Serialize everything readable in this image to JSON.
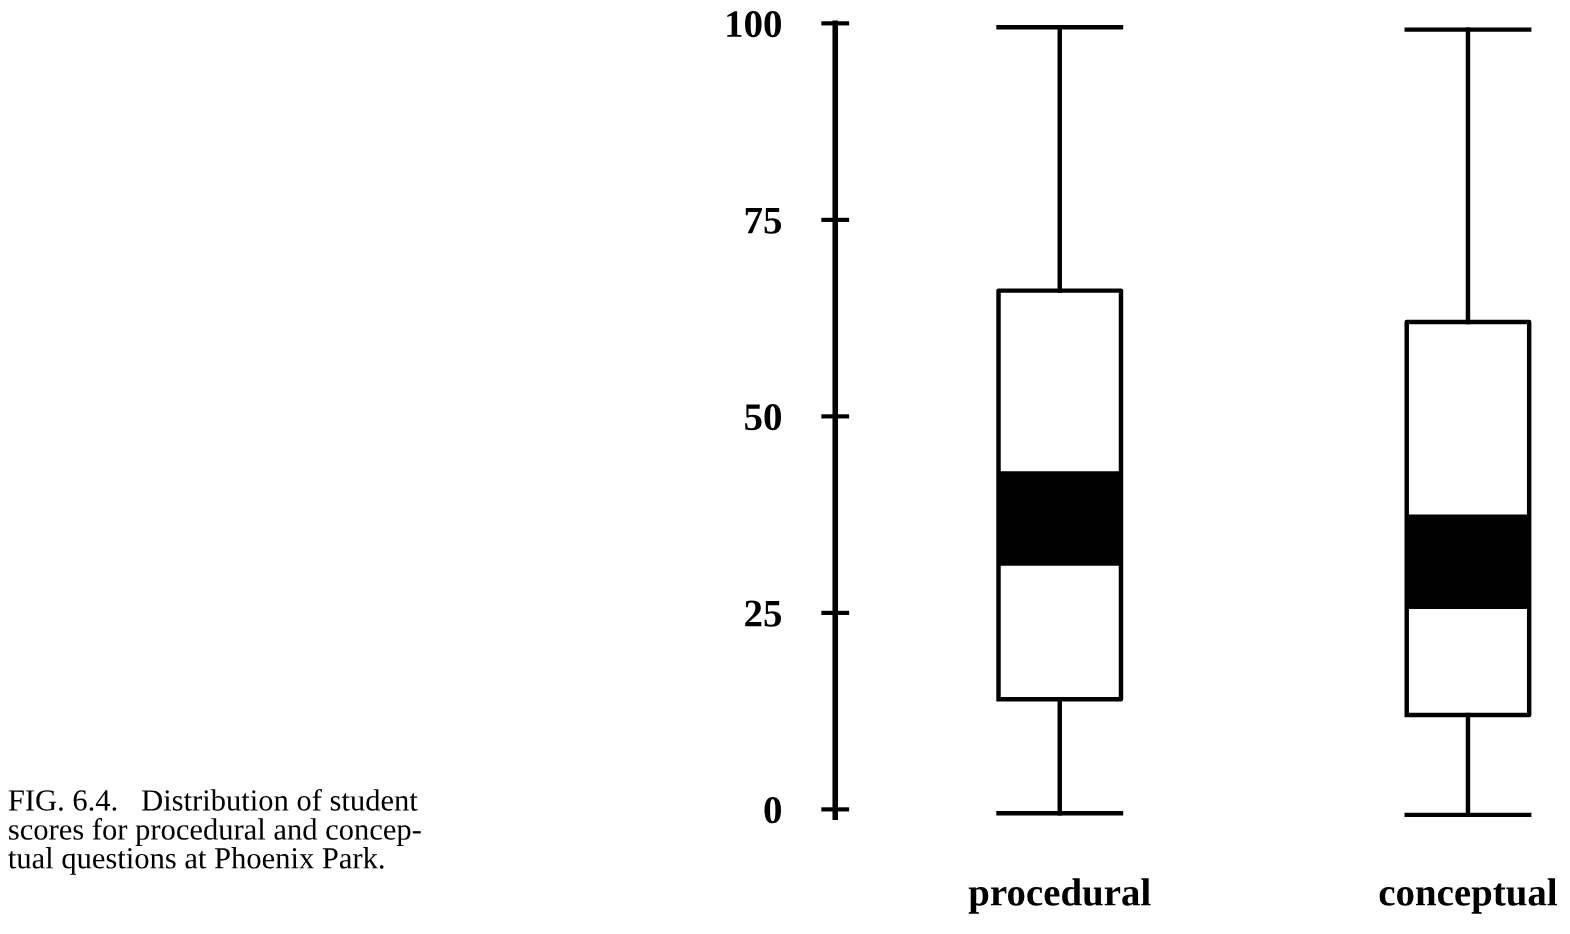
{
  "chart_data": {
    "type": "box",
    "categories": [
      "procedural",
      "conceptual"
    ],
    "boxes": [
      {
        "low": -0.5,
        "q1": 14,
        "median": 37,
        "q3": 66,
        "high": 99.5
      },
      {
        "low": -0.7,
        "q1": 12,
        "median": 31.5,
        "q3": 62,
        "high": 99.2
      }
    ],
    "ylim": [
      -1,
      100
    ],
    "yticks": [
      0,
      25,
      50,
      75,
      100
    ],
    "grid": false,
    "legend": false,
    "annotations": [
      "FIG. 6.4.   Distribution of student\nscores for procedural and concep-\ntual questions at Phoenix Park."
    ]
  }
}
